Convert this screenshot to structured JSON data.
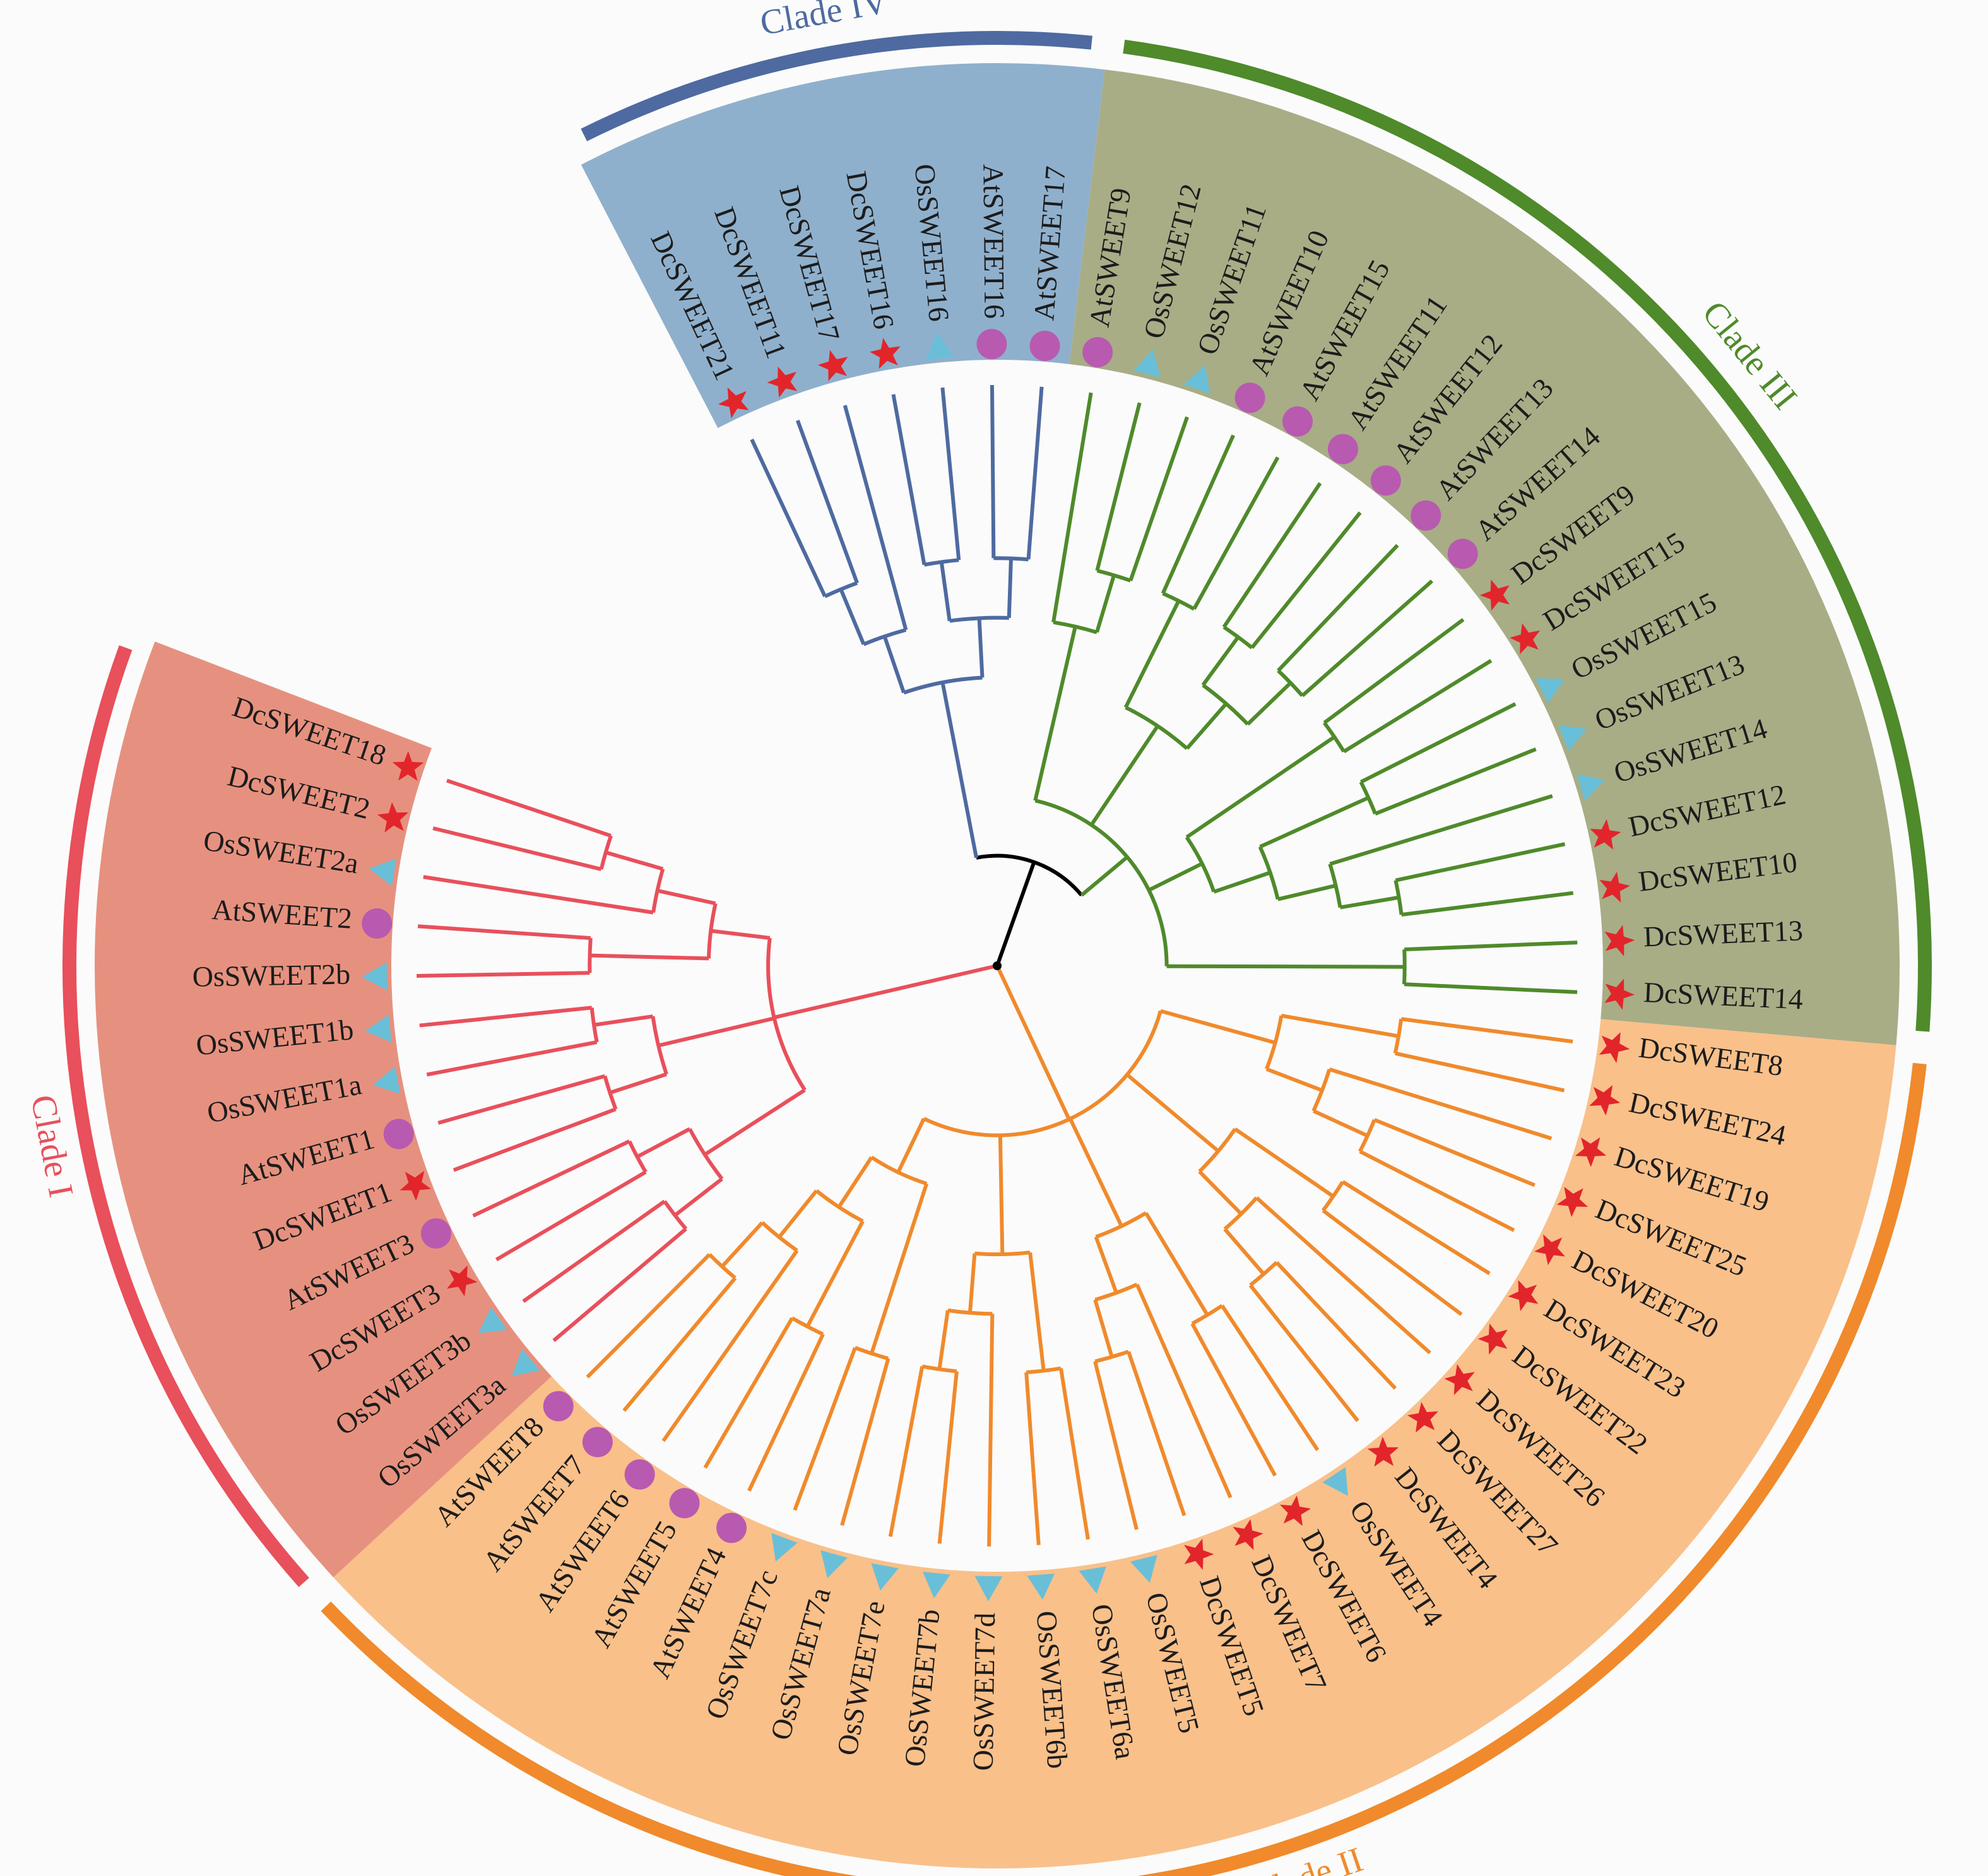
{
  "figure": {
    "clades": [
      {
        "id": "I",
        "label": "Clade I",
        "color": "#e8505b",
        "fill": "#e6917f"
      },
      {
        "id": "II",
        "label": "Clade II",
        "color": "#f08a2c",
        "fill": "#f9c08a"
      },
      {
        "id": "III",
        "label": "Clade III",
        "color": "#4f8a2b",
        "fill": "#a8ad86"
      },
      {
        "id": "IV",
        "label": "Clade IV",
        "color": "#4e6aa0",
        "fill": "#8fb0cc"
      }
    ],
    "species_markers": [
      {
        "prefix": "Dc",
        "marker": "red-star-icon",
        "color": "#e2252b"
      },
      {
        "prefix": "At",
        "marker": "purple-circle-icon",
        "color": "#b85ab0"
      },
      {
        "prefix": "Os",
        "marker": "cyan-triangle-icon",
        "color": "#69bfd8"
      }
    ],
    "leaves": [
      {
        "name": "DcSWEET21",
        "clade": "IV"
      },
      {
        "name": "DcSWEET11",
        "clade": "IV"
      },
      {
        "name": "DcSWEET17",
        "clade": "IV"
      },
      {
        "name": "DcSWEET16",
        "clade": "IV"
      },
      {
        "name": "OsSWEET16",
        "clade": "IV"
      },
      {
        "name": "AtSWEET16",
        "clade": "IV"
      },
      {
        "name": "AtSWEET17",
        "clade": "IV"
      },
      {
        "name": "AtSWEET9",
        "clade": "III"
      },
      {
        "name": "OsSWEET12",
        "clade": "III"
      },
      {
        "name": "OsSWEET11",
        "clade": "III"
      },
      {
        "name": "AtSWEET10",
        "clade": "III"
      },
      {
        "name": "AtSWEET15",
        "clade": "III"
      },
      {
        "name": "AtSWEET11",
        "clade": "III"
      },
      {
        "name": "AtSWEET12",
        "clade": "III"
      },
      {
        "name": "AtSWEET13",
        "clade": "III"
      },
      {
        "name": "AtSWEET14",
        "clade": "III"
      },
      {
        "name": "DcSWEET9",
        "clade": "III"
      },
      {
        "name": "DcSWEET15",
        "clade": "III"
      },
      {
        "name": "OsSWEET15",
        "clade": "III"
      },
      {
        "name": "OsSWEET13",
        "clade": "III"
      },
      {
        "name": "OsSWEET14",
        "clade": "III"
      },
      {
        "name": "DcSWEET12",
        "clade": "III"
      },
      {
        "name": "DcSWEET10",
        "clade": "III"
      },
      {
        "name": "DcSWEET13",
        "clade": "III"
      },
      {
        "name": "DcSWEET14",
        "clade": "III"
      },
      {
        "name": "DcSWEET8",
        "clade": "II"
      },
      {
        "name": "DcSWEET24",
        "clade": "II"
      },
      {
        "name": "DcSWEET19",
        "clade": "II"
      },
      {
        "name": "DcSWEET25",
        "clade": "II"
      },
      {
        "name": "DcSWEET20",
        "clade": "II"
      },
      {
        "name": "DcSWEET23",
        "clade": "II"
      },
      {
        "name": "DcSWEET22",
        "clade": "II"
      },
      {
        "name": "DcSWEET26",
        "clade": "II"
      },
      {
        "name": "DcSWEET27",
        "clade": "II"
      },
      {
        "name": "DcSWEET4",
        "clade": "II"
      },
      {
        "name": "OsSWEET4",
        "clade": "II"
      },
      {
        "name": "DcSWEET6",
        "clade": "II"
      },
      {
        "name": "DcSWEET7",
        "clade": "II"
      },
      {
        "name": "DcSWEET5",
        "clade": "II"
      },
      {
        "name": "OsSWEET5",
        "clade": "II"
      },
      {
        "name": "OsSWEET6a",
        "clade": "II"
      },
      {
        "name": "OsSWEET6b",
        "clade": "II"
      },
      {
        "name": "OsSWEET7d",
        "clade": "II"
      },
      {
        "name": "OsSWEET7b",
        "clade": "II"
      },
      {
        "name": "OsSWEET7e",
        "clade": "II"
      },
      {
        "name": "OsSWEET7a",
        "clade": "II"
      },
      {
        "name": "OsSWEET7c",
        "clade": "II"
      },
      {
        "name": "AtSWEET4",
        "clade": "II"
      },
      {
        "name": "AtSWEET5",
        "clade": "II"
      },
      {
        "name": "AtSWEET6",
        "clade": "II"
      },
      {
        "name": "AtSWEET7",
        "clade": "II"
      },
      {
        "name": "AtSWEET8",
        "clade": "II"
      },
      {
        "name": "OsSWEET3a",
        "clade": "I"
      },
      {
        "name": "OsSWEET3b",
        "clade": "I"
      },
      {
        "name": "DcSWEET3",
        "clade": "I"
      },
      {
        "name": "AtSWEET3",
        "clade": "I"
      },
      {
        "name": "DcSWEET1",
        "clade": "I"
      },
      {
        "name": "AtSWEET1",
        "clade": "I"
      },
      {
        "name": "OsSWEET1a",
        "clade": "I"
      },
      {
        "name": "OsSWEET1b",
        "clade": "I"
      },
      {
        "name": "OsSWEET2b",
        "clade": "I"
      },
      {
        "name": "AtSWEET2",
        "clade": "I"
      },
      {
        "name": "OsSWEET2a",
        "clade": "I"
      },
      {
        "name": "DcSWEET2",
        "clade": "I"
      },
      {
        "name": "DcSWEET18",
        "clade": "I"
      }
    ]
  }
}
